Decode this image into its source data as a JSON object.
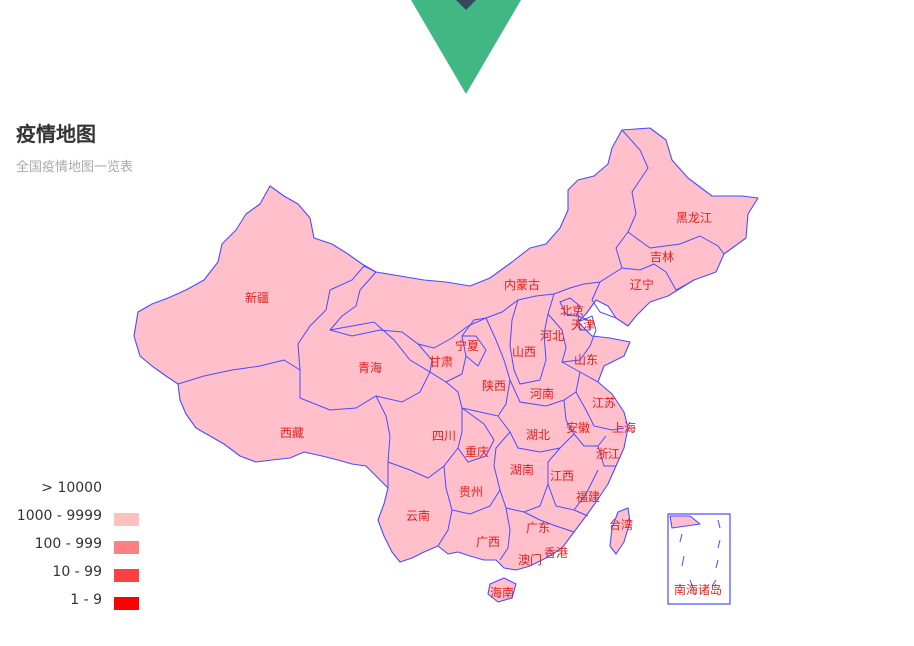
{
  "header": {
    "title": "疫情地图",
    "subtitle": "全国疫情地图一览表"
  },
  "legend": [
    {
      "label": "> 10000",
      "color": "#ffffff"
    },
    {
      "label": "1000 - 9999",
      "color": "#ffc0c0"
    },
    {
      "label": "100 - 999",
      "color": "#ff8080"
    },
    {
      "label": "10 - 99",
      "color": "#ff4040"
    },
    {
      "label": "1 - 9",
      "color": "#ff0000"
    }
  ],
  "colors": {
    "region_fill": "#ffc0cb",
    "border": "#4b4bff",
    "label": "#e0201e",
    "logo_outer": "#41b883",
    "logo_inner": "#35495e"
  },
  "regions": {
    "heilongjiang": "黑龙江",
    "jilin": "吉林",
    "liaoning": "辽宁",
    "neimenggu": "内蒙古",
    "beijing": "北京",
    "tianjin": "天津",
    "hebei": "河北",
    "shanxi": "山西",
    "shandong": "山东",
    "xinjiang": "新疆",
    "qinghai": "青海",
    "gansu": "甘肃",
    "ningxia": "宁夏",
    "shaanxi": "陕西",
    "henan": "河南",
    "jiangsu": "江苏",
    "xizang": "西藏",
    "sichuan": "四川",
    "hubei": "湖北",
    "anhui": "安徽",
    "shanghai": "上海",
    "chongqing": "重庆",
    "zhejiang": "浙江",
    "hunan": "湖南",
    "jiangxi": "江西",
    "guizhou": "贵州",
    "fujian": "福建",
    "yunnan": "云南",
    "taiwan": "台湾",
    "guangdong": "广东",
    "guangxi": "广西",
    "xianggang": "香港",
    "aomen": "澳门",
    "hainan": "海南",
    "nanhai": "南海诸岛"
  }
}
